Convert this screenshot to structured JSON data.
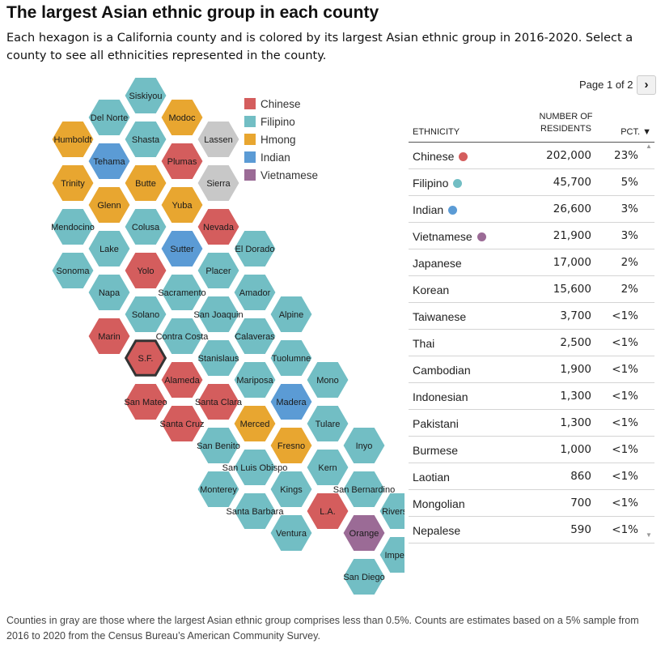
{
  "header": {
    "title": "The largest Asian ethnic group in each county",
    "subtitle": "Each hexagon is a California county and is colored by its largest Asian ethnic group in 2016-2020. Select a county to see all ethnicities represented in the county."
  },
  "colors": {
    "Chinese": "#d45d5d",
    "Filipino": "#72bec4",
    "Hmong": "#e8a630",
    "Indian": "#5b9bd5",
    "Vietnamese": "#9b6b96",
    "Gray": "#c8c8c8"
  },
  "legend": [
    {
      "label": "Chinese",
      "key": "Chinese"
    },
    {
      "label": "Filipino",
      "key": "Filipino"
    },
    {
      "label": "Hmong",
      "key": "Hmong"
    },
    {
      "label": "Indian",
      "key": "Indian"
    },
    {
      "label": "Vietnamese",
      "key": "Vietnamese"
    }
  ],
  "chart_data": {
    "type": "hex-map",
    "selected": "S.F.",
    "counties": [
      {
        "name": "Siskiyou",
        "group": "Filipino",
        "col": 5,
        "row": 0
      },
      {
        "name": "Del Norte",
        "group": "Filipino",
        "col": 4,
        "row": 1
      },
      {
        "name": "Modoc",
        "group": "Hmong",
        "col": 6,
        "row": 1
      },
      {
        "name": "Humboldt",
        "group": "Hmong",
        "col": 3,
        "row": 2
      },
      {
        "name": "Shasta",
        "group": "Filipino",
        "col": 5,
        "row": 2
      },
      {
        "name": "Lassen",
        "group": "Gray",
        "col": 7,
        "row": 2
      },
      {
        "name": "Tehama",
        "group": "Indian",
        "col": 4,
        "row": 3
      },
      {
        "name": "Plumas",
        "group": "Chinese",
        "col": 6,
        "row": 3
      },
      {
        "name": "Trinity",
        "group": "Hmong",
        "col": 3,
        "row": 4
      },
      {
        "name": "Butte",
        "group": "Hmong",
        "col": 5,
        "row": 4
      },
      {
        "name": "Sierra",
        "group": "Gray",
        "col": 7,
        "row": 4
      },
      {
        "name": "Glenn",
        "group": "Hmong",
        "col": 4,
        "row": 5
      },
      {
        "name": "Yuba",
        "group": "Hmong",
        "col": 6,
        "row": 5
      },
      {
        "name": "Mendocino",
        "group": "Filipino",
        "col": 3,
        "row": 6
      },
      {
        "name": "Colusa",
        "group": "Filipino",
        "col": 5,
        "row": 6
      },
      {
        "name": "Nevada",
        "group": "Chinese",
        "col": 7,
        "row": 6
      },
      {
        "name": "Lake",
        "group": "Filipino",
        "col": 4,
        "row": 7
      },
      {
        "name": "Sutter",
        "group": "Indian",
        "col": 6,
        "row": 7
      },
      {
        "name": "El Dorado",
        "group": "Filipino",
        "col": 8,
        "row": 7
      },
      {
        "name": "Sonoma",
        "group": "Filipino",
        "col": 3,
        "row": 8
      },
      {
        "name": "Yolo",
        "group": "Chinese",
        "col": 5,
        "row": 8
      },
      {
        "name": "Placer",
        "group": "Filipino",
        "col": 7,
        "row": 8
      },
      {
        "name": "Napa",
        "group": "Filipino",
        "col": 4,
        "row": 9
      },
      {
        "name": "Sacramento",
        "group": "Filipino",
        "col": 6,
        "row": 9
      },
      {
        "name": "Amador",
        "group": "Filipino",
        "col": 8,
        "row": 9
      },
      {
        "name": "Solano",
        "group": "Filipino",
        "col": 5,
        "row": 10
      },
      {
        "name": "San Joaquin",
        "group": "Filipino",
        "col": 7,
        "row": 10
      },
      {
        "name": "Alpine",
        "group": "Filipino",
        "col": 9,
        "row": 10
      },
      {
        "name": "Marin",
        "group": "Chinese",
        "col": 4,
        "row": 11
      },
      {
        "name": "Contra Costa",
        "group": "Filipino",
        "col": 6,
        "row": 11
      },
      {
        "name": "Calaveras",
        "group": "Filipino",
        "col": 8,
        "row": 11
      },
      {
        "name": "S.F.",
        "group": "Chinese",
        "col": 5,
        "row": 12
      },
      {
        "name": "Stanislaus",
        "group": "Filipino",
        "col": 7,
        "row": 12
      },
      {
        "name": "Tuolumne",
        "group": "Filipino",
        "col": 9,
        "row": 12
      },
      {
        "name": "Alameda",
        "group": "Chinese",
        "col": 6,
        "row": 13
      },
      {
        "name": "Mariposa",
        "group": "Filipino",
        "col": 8,
        "row": 13
      },
      {
        "name": "Mono",
        "group": "Filipino",
        "col": 10,
        "row": 13
      },
      {
        "name": "San Mateo",
        "group": "Chinese",
        "col": 5,
        "row": 14
      },
      {
        "name": "Santa Clara",
        "group": "Chinese",
        "col": 7,
        "row": 14
      },
      {
        "name": "Madera",
        "group": "Indian",
        "col": 9,
        "row": 14
      },
      {
        "name": "Santa Cruz",
        "group": "Chinese",
        "col": 6,
        "row": 15
      },
      {
        "name": "Merced",
        "group": "Hmong",
        "col": 8,
        "row": 15
      },
      {
        "name": "Tulare",
        "group": "Filipino",
        "col": 10,
        "row": 15
      },
      {
        "name": "San Benito",
        "group": "Filipino",
        "col": 7,
        "row": 16
      },
      {
        "name": "Fresno",
        "group": "Hmong",
        "col": 9,
        "row": 16
      },
      {
        "name": "Inyo",
        "group": "Filipino",
        "col": 11,
        "row": 16
      },
      {
        "name": "San Luis Obispo",
        "group": "Filipino",
        "col": 8,
        "row": 17
      },
      {
        "name": "Kern",
        "group": "Filipino",
        "col": 10,
        "row": 17
      },
      {
        "name": "Monterey",
        "group": "Filipino",
        "col": 7,
        "row": 18
      },
      {
        "name": "Kings",
        "group": "Filipino",
        "col": 9,
        "row": 18
      },
      {
        "name": "San Bernardino",
        "group": "Filipino",
        "col": 11,
        "row": 18
      },
      {
        "name": "Santa Barbara",
        "group": "Filipino",
        "col": 8,
        "row": 19
      },
      {
        "name": "L.A.",
        "group": "Chinese",
        "col": 10,
        "row": 19
      },
      {
        "name": "Riverside",
        "group": "Filipino",
        "col": 12,
        "row": 19
      },
      {
        "name": "Ventura",
        "group": "Filipino",
        "col": 9,
        "row": 20
      },
      {
        "name": "Orange",
        "group": "Vietnamese",
        "col": 11,
        "row": 20
      },
      {
        "name": "Imperial",
        "group": "Filipino",
        "col": 12,
        "row": 21
      },
      {
        "name": "San Diego",
        "group": "Filipino",
        "col": 11,
        "row": 22
      }
    ]
  },
  "pagination": {
    "label": "Page 1 of 2",
    "next_symbol": "›"
  },
  "table": {
    "col_ethnicity": "ETHNICITY",
    "col_residents": "NUMBER OF RESIDENTS",
    "col_pct": "PCT. ▼",
    "rows": [
      {
        "ethnicity": "Chinese",
        "residents": "202,000",
        "pct": "23%",
        "dot": "#d45d5d"
      },
      {
        "ethnicity": "Filipino",
        "residents": "45,700",
        "pct": "5%",
        "dot": "#72bec4"
      },
      {
        "ethnicity": "Indian",
        "residents": "26,600",
        "pct": "3%",
        "dot": "#5b9bd5"
      },
      {
        "ethnicity": "Vietnamese",
        "residents": "21,900",
        "pct": "3%",
        "dot": "#9b6b96"
      },
      {
        "ethnicity": "Japanese",
        "residents": "17,000",
        "pct": "2%",
        "dot": ""
      },
      {
        "ethnicity": "Korean",
        "residents": "15,600",
        "pct": "2%",
        "dot": ""
      },
      {
        "ethnicity": "Taiwanese",
        "residents": "3,700",
        "pct": "<1%",
        "dot": ""
      },
      {
        "ethnicity": "Thai",
        "residents": "2,500",
        "pct": "<1%",
        "dot": ""
      },
      {
        "ethnicity": "Cambodian",
        "residents": "1,900",
        "pct": "<1%",
        "dot": ""
      },
      {
        "ethnicity": "Indonesian",
        "residents": "1,300",
        "pct": "<1%",
        "dot": ""
      },
      {
        "ethnicity": "Pakistani",
        "residents": "1,300",
        "pct": "<1%",
        "dot": ""
      },
      {
        "ethnicity": "Burmese",
        "residents": "1,000",
        "pct": "<1%",
        "dot": ""
      },
      {
        "ethnicity": "Laotian",
        "residents": "860",
        "pct": "<1%",
        "dot": ""
      },
      {
        "ethnicity": "Mongolian",
        "residents": "700",
        "pct": "<1%",
        "dot": ""
      },
      {
        "ethnicity": "Nepalese",
        "residents": "590",
        "pct": "<1%",
        "dot": ""
      }
    ]
  },
  "footnote": "Counties in gray are those where the largest Asian ethnic group comprises less than 0.5%. Counts are estimates based on a 5% sample from 2016 to 2020 from the Census Bureau’s American Community Survey."
}
